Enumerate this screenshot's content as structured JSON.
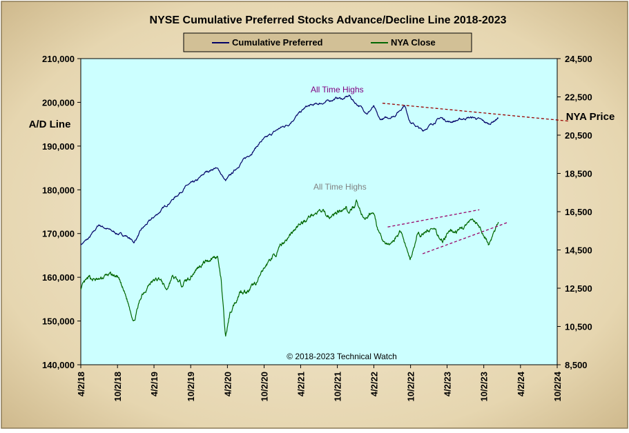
{
  "chart_data": {
    "type": "line",
    "title": "NYSE Cumulative  Preferred Stocks Advance/Decline  Line 2018-2023",
    "ylabel_left": "A/D Line",
    "ylabel_right": "NYA Price",
    "copyright": "© 2018-2023  Technical  Watch",
    "ylim_left": [
      140000,
      210000
    ],
    "ylim_right": [
      8500,
      24500
    ],
    "yticks_left": [
      "140,000",
      "150,000",
      "160,000",
      "170,000",
      "180,000",
      "190,000",
      "200,000",
      "210,000"
    ],
    "yticks_right": [
      "8,500",
      "10,500",
      "12,500",
      "14,500",
      "16,500",
      "18,500",
      "20,500",
      "22,500",
      "24,500"
    ],
    "xticks": [
      "4/2/18",
      "10/2/18",
      "4/2/19",
      "10/2/19",
      "4/2/20",
      "10/2/20",
      "4/2/21",
      "10/2/21",
      "4/2/22",
      "10/2/22",
      "4/2/23",
      "10/2/23",
      "4/2/24",
      "10/2/24"
    ],
    "xlim": [
      "4/2/18",
      "10/2/24"
    ],
    "legend_position": "top-center",
    "annotations": [
      {
        "text": "All Time Highs",
        "near_series": "Cumulative Preferred",
        "x": "10/1/21"
      },
      {
        "text": "All Time Highs",
        "near_series": "NYA Close",
        "x": "10/15/21"
      }
    ],
    "series": [
      {
        "name": "Cumulative Preferred",
        "axis": "left",
        "color": "#000066",
        "x": [
          "4/2/18",
          "5/15/18",
          "7/1/18",
          "8/15/18",
          "10/1/18",
          "11/15/18",
          "12/24/18",
          "2/1/19",
          "3/15/19",
          "5/1/19",
          "6/15/19",
          "8/1/19",
          "9/15/19",
          "11/1/19",
          "12/15/19",
          "2/1/20",
          "2/20/20",
          "3/23/20",
          "4/30/20",
          "6/15/20",
          "8/1/20",
          "9/15/20",
          "11/1/20",
          "12/15/20",
          "2/1/21",
          "3/15/21",
          "5/1/21",
          "6/15/21",
          "8/1/21",
          "9/1/21",
          "10/1/21",
          "11/1/21",
          "12/1/21",
          "12/27/21",
          "1/25/22",
          "3/1/22",
          "4/1/22",
          "5/1/22",
          "6/15/22",
          "7/15/22",
          "8/15/22",
          "9/1/22",
          "10/1/22",
          "11/1/22",
          "12/1/22",
          "1/15/23",
          "3/1/23",
          "4/15/23",
          "6/1/23",
          "7/15/23",
          "8/15/23",
          "9/15/23",
          "10/27/23",
          "12/15/23"
        ],
        "values": [
          167500,
          169000,
          172000,
          171000,
          170000,
          169500,
          168000,
          171000,
          173000,
          175000,
          177000,
          179000,
          181000,
          182000,
          184000,
          185000,
          184500,
          182000,
          184000,
          186500,
          188500,
          191000,
          192500,
          194000,
          195000,
          197000,
          199000,
          199500,
          200000,
          200500,
          201000,
          200800,
          201500,
          200000,
          199000,
          197500,
          199000,
          196000,
          196500,
          197000,
          198500,
          199500,
          195500,
          194500,
          193500,
          195000,
          196500,
          195500,
          196000,
          196500,
          196500,
          196000,
          195000,
          196500
        ]
      },
      {
        "name": "NYA Close",
        "axis": "right",
        "color": "#006600",
        "x": [
          "4/2/18",
          "5/15/18",
          "7/1/18",
          "8/15/18",
          "10/1/18",
          "11/15/18",
          "12/24/18",
          "2/1/19",
          "3/15/19",
          "5/1/19",
          "6/3/19",
          "7/1/19",
          "8/15/19",
          "10/1/19",
          "11/15/19",
          "1/1/20",
          "2/12/20",
          "3/1/20",
          "3/23/20",
          "4/15/20",
          "6/8/20",
          "7/15/20",
          "9/1/20",
          "10/30/20",
          "12/1/20",
          "1/15/21",
          "3/1/21",
          "4/15/21",
          "6/1/21",
          "7/15/21",
          "9/1/21",
          "10/1/21",
          "11/15/21",
          "12/1/21",
          "1/5/22",
          "2/15/22",
          "3/29/22",
          "5/1/22",
          "6/16/22",
          "8/16/22",
          "9/30/22",
          "11/1/22",
          "12/1/22",
          "1/15/23",
          "3/10/23",
          "4/15/23",
          "6/1/23",
          "7/31/23",
          "8/31/23",
          "10/27/23",
          "12/15/23"
        ],
        "values": [
          12500,
          13000,
          12900,
          13200,
          13100,
          12000,
          10800,
          12200,
          12800,
          13000,
          12400,
          13100,
          12700,
          13100,
          13700,
          14000,
          14200,
          13000,
          9900,
          11200,
          12400,
          12300,
          12900,
          14000,
          14300,
          15000,
          15500,
          16000,
          16400,
          16500,
          16200,
          16500,
          16800,
          16300,
          17000,
          16000,
          16600,
          15200,
          14700,
          15500,
          14000,
          15200,
          15300,
          15600,
          15000,
          15400,
          15500,
          16000,
          15800,
          14800,
          15900
        ]
      }
    ],
    "trendlines": [
      {
        "series": "Cumulative Preferred",
        "axis": "left",
        "points": [
          [
            "5/15/22",
            199800
          ],
          [
            "12/1/24",
            195700
          ]
        ],
        "color": "#990000",
        "style": "dashed"
      },
      {
        "series": "NYA Close",
        "axis": "right",
        "points": [
          [
            "6/10/22",
            15700
          ],
          [
            "9/10/23",
            16600
          ]
        ],
        "color": "#990066",
        "style": "dashed"
      },
      {
        "series": "NYA Close",
        "axis": "right",
        "points": [
          [
            "12/1/22",
            14300
          ],
          [
            "2/1/24",
            15950
          ]
        ],
        "color": "#990066",
        "style": "dashed"
      }
    ],
    "colors": {
      "frame_light": "#ece0c2",
      "frame_dark": "#b9a47c",
      "plot_bg": "#ccffff",
      "legend_bg": "#d2c096",
      "text": "#000000",
      "annotation_ad": "#800080",
      "annotation_nya": "#808080"
    }
  }
}
